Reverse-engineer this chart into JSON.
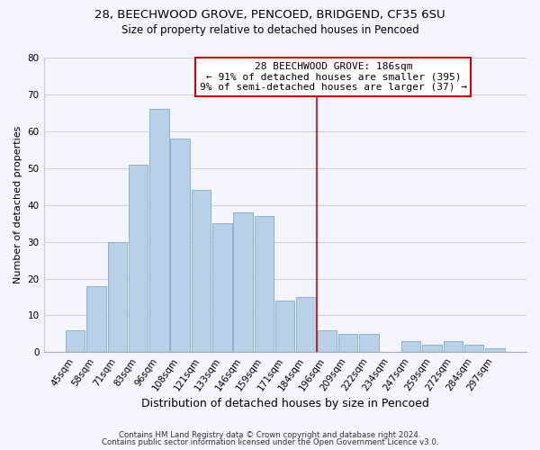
{
  "title1": "28, BEECHWOOD GROVE, PENCOED, BRIDGEND, CF35 6SU",
  "title2": "Size of property relative to detached houses in Pencoed",
  "xlabel": "Distribution of detached houses by size in Pencoed",
  "ylabel": "Number of detached properties",
  "bar_labels": [
    "45sqm",
    "58sqm",
    "71sqm",
    "83sqm",
    "96sqm",
    "108sqm",
    "121sqm",
    "133sqm",
    "146sqm",
    "159sqm",
    "171sqm",
    "184sqm",
    "196sqm",
    "209sqm",
    "222sqm",
    "234sqm",
    "247sqm",
    "259sqm",
    "272sqm",
    "284sqm",
    "297sqm"
  ],
  "bar_values": [
    6,
    18,
    30,
    51,
    66,
    58,
    44,
    35,
    38,
    37,
    14,
    15,
    6,
    5,
    5,
    0,
    3,
    2,
    3,
    2,
    1
  ],
  "bar_color": "#b8d0e8",
  "bar_edge_color": "#8ab4d4",
  "grid_color": "#d0d0d0",
  "annotation_box_text": "28 BEECHWOOD GROVE: 186sqm\n← 91% of detached houses are smaller (395)\n9% of semi-detached houses are larger (37) →",
  "annotation_box_color": "#ffffff",
  "annotation_box_edge_color": "#cc0000",
  "annotation_line_color": "#cc0000",
  "red_line_x": 11.5,
  "ylim": [
    0,
    80
  ],
  "yticks": [
    0,
    10,
    20,
    30,
    40,
    50,
    60,
    70,
    80
  ],
  "footer1": "Contains HM Land Registry data © Crown copyright and database right 2024.",
  "footer2": "Contains public sector information licensed under the Open Government Licence v3.0.",
  "background_color": "#f5f5ff",
  "title1_fontsize": 9.5,
  "title2_fontsize": 8.5,
  "ylabel_fontsize": 8.0,
  "xlabel_fontsize": 9.0,
  "tick_fontsize": 7.5,
  "footer_fontsize": 6.2,
  "annot_fontsize": 8.0
}
